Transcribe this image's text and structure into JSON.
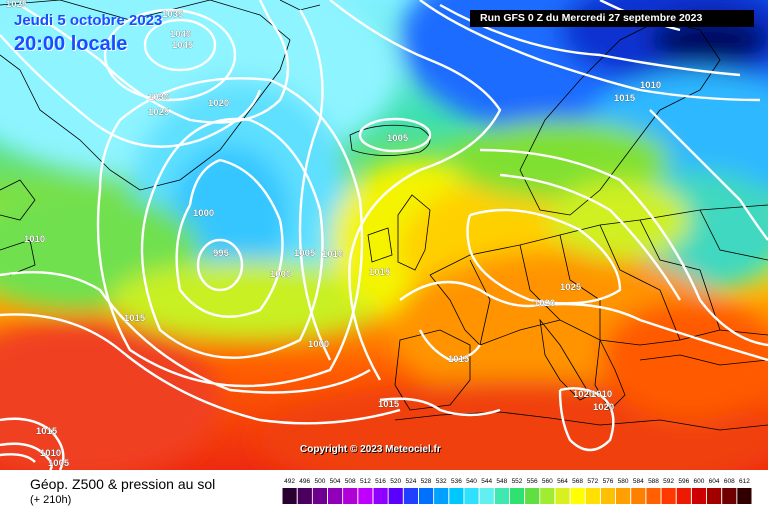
{
  "header": {
    "valid_date": "Jeudi 5 octobre 2023",
    "local_time": "20:00 locale",
    "run_info": "Run GFS 0 Z du Mercredi 27 septembre 2023"
  },
  "copyright": "Copyright © 2023 Meteociel.fr",
  "footer": {
    "product_title": "Géop. Z500 & pression au sol",
    "lead_time": "(+ 210h)"
  },
  "legend": {
    "values": [
      "492",
      "496",
      "500",
      "504",
      "508",
      "512",
      "516",
      "520",
      "524",
      "528",
      "532",
      "536",
      "540",
      "544",
      "548",
      "552",
      "556",
      "560",
      "564",
      "568",
      "572",
      "576",
      "580",
      "584",
      "588",
      "592",
      "596",
      "600",
      "604",
      "608",
      "612"
    ],
    "colors": [
      "#2a0030",
      "#4b0060",
      "#6e0090",
      "#8f00b8",
      "#b000d8",
      "#c000ff",
      "#9000ff",
      "#5a00ff",
      "#2040ff",
      "#0070ff",
      "#00a0ff",
      "#00c8ff",
      "#30e0ff",
      "#60f0f0",
      "#40e8b0",
      "#30e070",
      "#60e040",
      "#a0ec30",
      "#d8f020",
      "#ffff00",
      "#ffe000",
      "#ffc000",
      "#ffa000",
      "#ff8000",
      "#ff6000",
      "#ff3a00",
      "#ee1a00",
      "#cc0000",
      "#a00000",
      "#700000",
      "#300000"
    ]
  },
  "isobar_labels": [
    "1025",
    "1035",
    "1040",
    "1045",
    "1030",
    "1025",
    "1020",
    "1005",
    "1010",
    "1015",
    "1010",
    "1000",
    "995",
    "1005",
    "1010",
    "1000",
    "1000",
    "1015",
    "1025",
    "1020",
    "1015",
    "1015",
    "1015",
    "1020",
    "1010",
    "1020",
    "1015",
    "1010",
    "1005"
  ]
}
